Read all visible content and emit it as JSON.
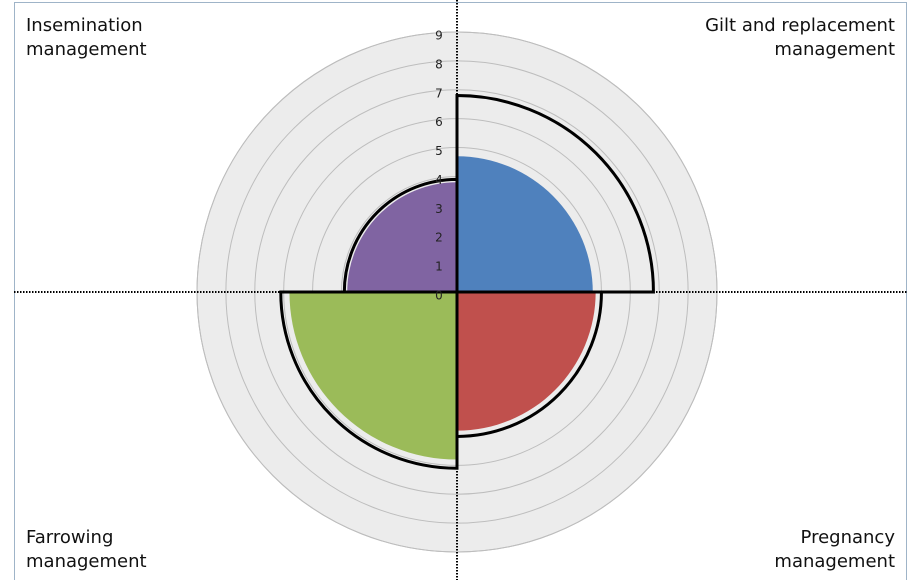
{
  "chart_data": {
    "type": "polar_area",
    "categories": [
      "Gilt and replacement management",
      "Pregnancy management",
      "Farrowing management",
      "Insemination management"
    ],
    "values": [
      4.7,
      4.8,
      5.8,
      3.8
    ],
    "outline_values": [
      6.8,
      5.0,
      6.1,
      3.9
    ],
    "colors": [
      "#4f81bd",
      "#c0504d",
      "#9bbb59",
      "#8064a2"
    ],
    "rlim": [
      0,
      9
    ],
    "rticks": [
      0,
      1,
      2,
      3,
      4,
      5,
      6,
      7,
      8,
      9
    ]
  }
}
